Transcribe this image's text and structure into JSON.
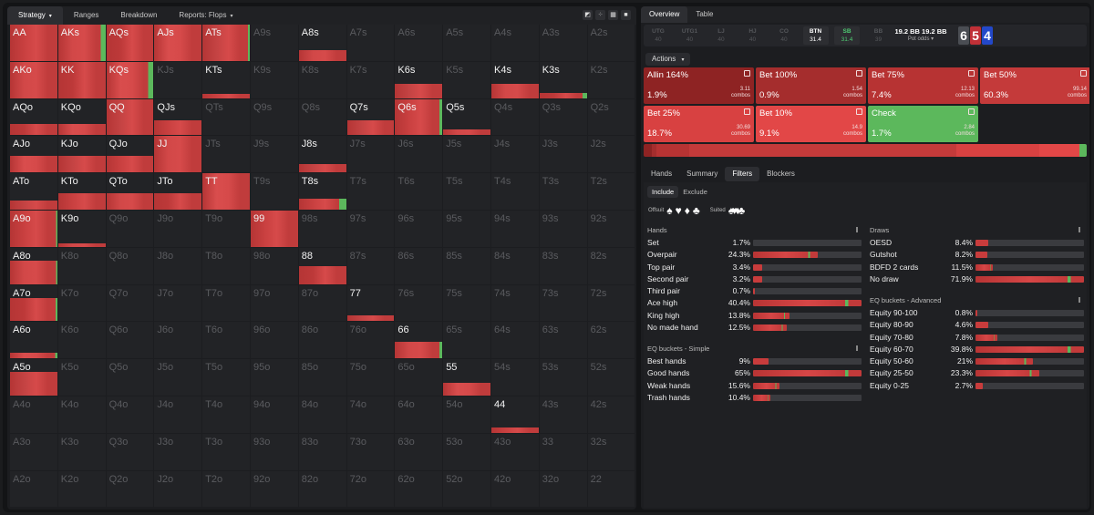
{
  "left_tabs": [
    {
      "label": "Strategy",
      "caret": "▾",
      "active": true
    },
    {
      "label": "Ranges"
    },
    {
      "label": "Breakdown"
    },
    {
      "label": "Reports: Flops",
      "caret": "▾"
    }
  ],
  "grid_view_icons": [
    "split-view-icon",
    "grid-small-icon",
    "grid-large-icon",
    "square-icon"
  ],
  "grid": {
    "rows": [
      [
        "AA",
        "AKs",
        "AQs",
        "AJs",
        "ATs",
        "A9s",
        "A8s",
        "A7s",
        "A6s",
        "A5s",
        "A4s",
        "A3s",
        "A2s"
      ],
      [
        "AKo",
        "KK",
        "KQs",
        "KJs",
        "KTs",
        "K9s",
        "K8s",
        "K7s",
        "K6s",
        "K5s",
        "K4s",
        "K3s",
        "K2s"
      ],
      [
        "AQo",
        "KQo",
        "QQ",
        "QJs",
        "QTs",
        "Q9s",
        "Q8s",
        "Q7s",
        "Q6s",
        "Q5s",
        "Q4s",
        "Q3s",
        "Q2s"
      ],
      [
        "AJo",
        "KJo",
        "QJo",
        "JJ",
        "JTs",
        "J9s",
        "J8s",
        "J7s",
        "J6s",
        "J5s",
        "J4s",
        "J3s",
        "J2s"
      ],
      [
        "ATo",
        "KTo",
        "QTo",
        "JTo",
        "TT",
        "T9s",
        "T8s",
        "T7s",
        "T6s",
        "T5s",
        "T4s",
        "T3s",
        "T2s"
      ],
      [
        "A9o",
        "K9o",
        "Q9o",
        "J9o",
        "T9o",
        "99",
        "98s",
        "97s",
        "96s",
        "95s",
        "94s",
        "93s",
        "92s"
      ],
      [
        "A8o",
        "K8o",
        "Q8o",
        "J8o",
        "T8o",
        "98o",
        "88",
        "87s",
        "86s",
        "85s",
        "84s",
        "83s",
        "82s"
      ],
      [
        "A7o",
        "K7o",
        "Q7o",
        "J7o",
        "T7o",
        "97o",
        "87o",
        "77",
        "76s",
        "75s",
        "74s",
        "73s",
        "72s"
      ],
      [
        "A6o",
        "K6o",
        "Q6o",
        "J6o",
        "T6o",
        "96o",
        "86o",
        "76o",
        "66",
        "65s",
        "64s",
        "63s",
        "62s"
      ],
      [
        "A5o",
        "K5o",
        "Q5o",
        "J5o",
        "T5o",
        "95o",
        "85o",
        "75o",
        "65o",
        "55",
        "54s",
        "53s",
        "52s"
      ],
      [
        "A4o",
        "K4o",
        "Q4o",
        "J4o",
        "T4o",
        "94o",
        "84o",
        "74o",
        "64o",
        "54o",
        "44",
        "43s",
        "42s"
      ],
      [
        "A3o",
        "K3o",
        "Q3o",
        "J3o",
        "T3o",
        "93o",
        "83o",
        "73o",
        "63o",
        "53o",
        "43o",
        "33",
        "32s"
      ],
      [
        "A2o",
        "K2o",
        "Q2o",
        "J2o",
        "T2o",
        "92o",
        "82o",
        "72o",
        "62o",
        "52o",
        "42o",
        "32o",
        "22"
      ]
    ],
    "frequencies": {
      "AA": 1,
      "AKs": 1,
      "AQs": 1,
      "AJs": 1,
      "ATs": 1,
      "A8s": 0.3,
      "AKo": 1,
      "KK": 1,
      "KQs": 1,
      "KTs": 0.12,
      "K6s": 0.4,
      "K4s": 0.4,
      "K3s": 0.15,
      "AQo": 0.3,
      "KQo": 0.3,
      "QQ": 1,
      "QJs": 0.4,
      "Q7s": 0.4,
      "Q6s": 1,
      "Q5s": 0.15,
      "AJo": 0.45,
      "KJo": 0.45,
      "QJo": 0.45,
      "JJ": 1,
      "J8s": 0.22,
      "ATo": 0.25,
      "KTo": 0.45,
      "QTo": 0.45,
      "JTo": 0.45,
      "TT": 1,
      "T8s": 0.3,
      "A9o": 1,
      "K9o": 0.1,
      "99": 1,
      "A8o": 0.65,
      "88": 0.5,
      "A7o": 0.65,
      "77": 0.15,
      "A6o": 0.15,
      "66": 0.45,
      "A5o": 0.65,
      "55": 0.35,
      "44": 0.15
    },
    "check_share": {
      "AKs": 0.11,
      "KQs": 0.11,
      "ATs": 0.04,
      "K3s": 0.1,
      "T8s": 0.15,
      "Q6s": 0.06,
      "A9o": 0.03,
      "A8o": 0.03,
      "A7o": 0.04,
      "A6o": 0.05,
      "66": 0.06
    }
  },
  "right_tabs": [
    {
      "label": "Overview",
      "active": true
    },
    {
      "label": "Table"
    }
  ],
  "positions": [
    {
      "name": "UTG",
      "stack": "40"
    },
    {
      "name": "UTG1",
      "stack": "40"
    },
    {
      "name": "LJ",
      "stack": "40"
    },
    {
      "name": "HJ",
      "stack": "40"
    },
    {
      "name": "CO",
      "stack": "40"
    },
    {
      "name": "BTN",
      "stack": "31.4",
      "state": "btn"
    },
    {
      "name": "SB",
      "stack": "31.4",
      "state": "sb"
    },
    {
      "name": "BB",
      "stack": "39"
    }
  ],
  "pot": {
    "values": "19.2 BB  19.2 BB",
    "odds_label": "Pot odds",
    "caret": "▾"
  },
  "board": [
    {
      "rank": "6",
      "suit_color": "#4a4d53"
    },
    {
      "rank": "5",
      "suit_color": "#c03037"
    },
    {
      "rank": "4",
      "suit_color": "#2348c9"
    }
  ],
  "actions_label": "Actions",
  "actions_caret": "▾",
  "actions": [
    {
      "name": "Allin 164%",
      "pct": "1.9%",
      "combos": "3.11",
      "combos_label": "combos",
      "color": "#8e2323",
      "freq": 0.019
    },
    {
      "name": "Bet 100%",
      "pct": "0.9%",
      "combos": "1.54",
      "combos_label": "combos",
      "color": "#a52d2d",
      "freq": 0.009
    },
    {
      "name": "Bet 75%",
      "pct": "7.4%",
      "combos": "12.13",
      "combos_label": "combos",
      "color": "#b73333",
      "freq": 0.074
    },
    {
      "name": "Bet 50%",
      "pct": "60.3%",
      "combos": "99.14",
      "combos_label": "combos",
      "color": "#c43a3a",
      "freq": 0.603
    },
    {
      "name": "Bet 25%",
      "pct": "18.7%",
      "combos": "30.69",
      "combos_label": "combos",
      "color": "#d84141",
      "freq": 0.187
    },
    {
      "name": "Bet 10%",
      "pct": "9.1%",
      "combos": "14.9",
      "combos_label": "combos",
      "color": "#e24747",
      "freq": 0.091
    },
    {
      "name": "Check",
      "pct": "1.7%",
      "combos": "2.84",
      "combos_label": "combos",
      "color": "#5cb85c",
      "freq": 0.017
    }
  ],
  "sub_tabs": [
    {
      "label": "Hands"
    },
    {
      "label": "Summary"
    },
    {
      "label": "Filters",
      "active": true
    },
    {
      "label": "Blockers"
    }
  ],
  "include_toggle": [
    {
      "label": "Include",
      "on": true
    },
    {
      "label": "Exclude"
    }
  ],
  "suit_filters": {
    "offsuit_label": "Offsuit",
    "offsuit": [
      "♠",
      "♥",
      "♦",
      "♣"
    ],
    "suited_label": "Suited",
    "suited": "♠♥♦♣"
  },
  "hands": {
    "title": "Hands",
    "rows": [
      {
        "label": "Set",
        "value": "1.7%",
        "frac": 0
      },
      {
        "label": "Overpair",
        "value": "24.3%",
        "frac": 0.6
      },
      {
        "label": "Top pair",
        "value": "3.4%",
        "frac": 0.08
      },
      {
        "label": "Second pair",
        "value": "3.2%",
        "frac": 0.08
      },
      {
        "label": "Third pair",
        "value": "0.7%",
        "frac": 0.02
      },
      {
        "label": "Ace high",
        "value": "40.4%",
        "frac": 1
      },
      {
        "label": "King high",
        "value": "13.8%",
        "frac": 0.34
      },
      {
        "label": "No made hand",
        "value": "12.5%",
        "frac": 0.31
      }
    ]
  },
  "eq_simple": {
    "title": "EQ buckets - Simple",
    "rows": [
      {
        "label": "Best hands",
        "value": "9%",
        "frac": 0.14
      },
      {
        "label": "Good hands",
        "value": "65%",
        "frac": 1
      },
      {
        "label": "Weak hands",
        "value": "15.6%",
        "frac": 0.24
      },
      {
        "label": "Trash hands",
        "value": "10.4%",
        "frac": 0.16
      }
    ]
  },
  "draws": {
    "title": "Draws",
    "rows": [
      {
        "label": "OESD",
        "value": "8.4%",
        "frac": 0.12
      },
      {
        "label": "Gutshot",
        "value": "8.2%",
        "frac": 0.11
      },
      {
        "label": "BDFD 2 cards",
        "value": "11.5%",
        "frac": 0.16
      },
      {
        "label": "No draw",
        "value": "71.9%",
        "frac": 1
      }
    ]
  },
  "eq_advanced": {
    "title": "EQ buckets - Advanced",
    "rows": [
      {
        "label": "Equity 90-100",
        "value": "0.8%",
        "frac": 0.02
      },
      {
        "label": "Equity 80-90",
        "value": "4.6%",
        "frac": 0.12
      },
      {
        "label": "Equity 70-80",
        "value": "7.8%",
        "frac": 0.2
      },
      {
        "label": "Equity 60-70",
        "value": "39.8%",
        "frac": 1
      },
      {
        "label": "Equity 50-60",
        "value": "21%",
        "frac": 0.53
      },
      {
        "label": "Equity 25-50",
        "value": "23.3%",
        "frac": 0.59
      },
      {
        "label": "Equity 0-25",
        "value": "2.7%",
        "frac": 0.07
      }
    ]
  }
}
